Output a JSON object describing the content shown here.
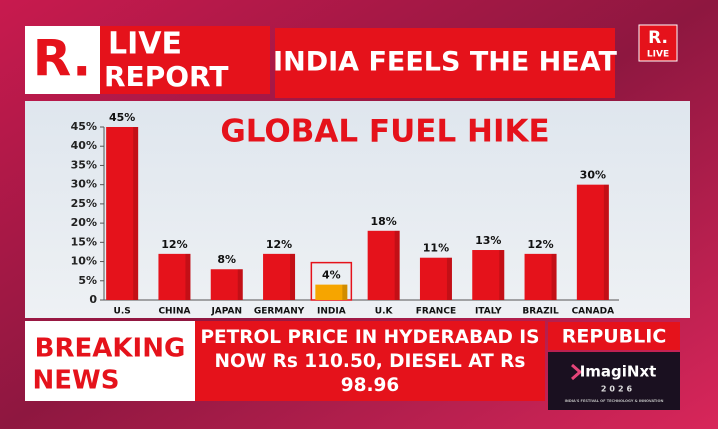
{
  "logo": {
    "mark": "R.",
    "line1": "LIVE",
    "line2": "REPORT"
  },
  "headline": "INDIA FEELS THE HEAT",
  "corner_logo": {
    "mark": "R.",
    "tag": "LIVE"
  },
  "chart_data": {
    "type": "bar",
    "title": "GLOBAL FUEL HIKE",
    "categories": [
      "U.S",
      "CHINA",
      "JAPAN",
      "GERMANY",
      "INDIA",
      "U.K",
      "FRANCE",
      "ITALY",
      "BRAZIL",
      "CANADA"
    ],
    "values": [
      45,
      12,
      8,
      12,
      4,
      18,
      11,
      13,
      12,
      30
    ],
    "value_labels": [
      "45%",
      "12%",
      "8%",
      "12%",
      "4%",
      "18%",
      "11%",
      "13%",
      "12%",
      "30%"
    ],
    "colors": [
      "#e5121b",
      "#e5121b",
      "#e5121b",
      "#e5121b",
      "#f6a500",
      "#e5121b",
      "#e5121b",
      "#e5121b",
      "#e5121b",
      "#e5121b"
    ],
    "highlight_index": 4,
    "ylim": [
      0,
      45
    ],
    "yticks": [
      0,
      {
        "value": 5,
        "label": "5%"
      },
      {
        "value": 10,
        "label": "10%"
      },
      {
        "value": 15,
        "label": "15%"
      },
      {
        "value": 20,
        "label": "20%"
      },
      {
        "value": 25,
        "label": "25%"
      },
      {
        "value": 30,
        "label": "30%"
      },
      {
        "value": 35,
        "label": "35%"
      },
      {
        "value": 40,
        "label": "40%"
      },
      {
        "value": 45,
        "label": "45%"
      }
    ]
  },
  "breaking": {
    "line1": "BREAKING",
    "line2": "NEWS"
  },
  "ticker": {
    "lines": [
      "PETROL PRICE IN HYDERABAD IS",
      "NOW Rs 110.50, DIESEL AT Rs",
      "98.96"
    ]
  },
  "channel": "REPUBLIC",
  "promo": {
    "name": "ImagiNxt",
    "year": "2026",
    "tagline": "INDIA'S FESTIVAL OF TECHNOLOGY & INNOVATION"
  }
}
